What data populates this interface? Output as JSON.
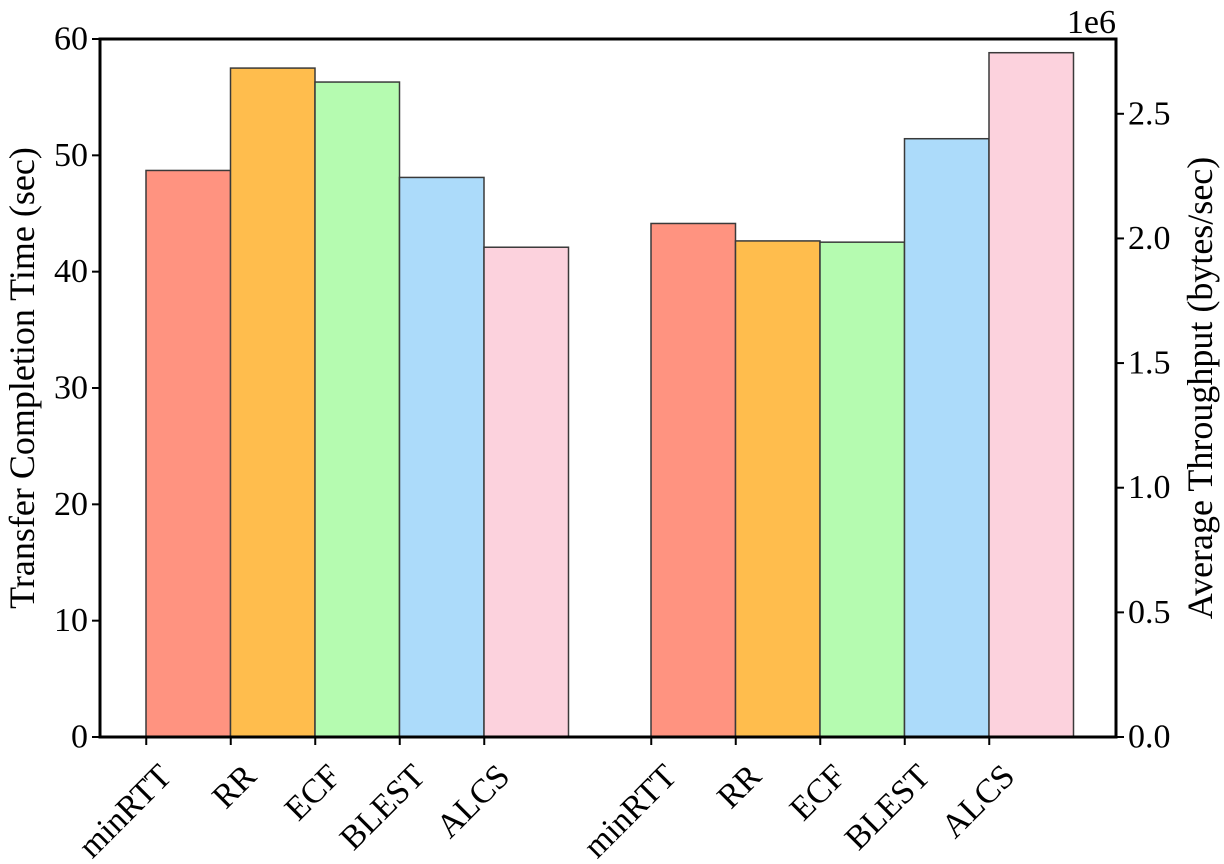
{
  "chart_data": {
    "type": "bar",
    "categories": [
      "minRTT",
      "RR",
      "ECF",
      "BLEST",
      "ALCS"
    ],
    "colors": [
      "#ff9380",
      "#ffbd4d",
      "#b5fbb0",
      "#acdbfa",
      "#fcd2dd"
    ],
    "left_axis": {
      "label": "Transfer Completion Time (sec)",
      "ylim": [
        0,
        60
      ],
      "ticks": [
        0,
        10,
        20,
        30,
        40,
        50,
        60
      ],
      "tick_labels": [
        "0",
        "10",
        "20",
        "30",
        "40",
        "50",
        "60"
      ]
    },
    "right_axis": {
      "label": "Average Throughput (bytes/sec)",
      "offset_text": "1e6",
      "ylim": [
        0,
        2.8
      ],
      "ticks": [
        0,
        0.5,
        1.0,
        1.5,
        2.0,
        2.5
      ],
      "tick_labels": [
        "0.0",
        "0.5",
        "1.0",
        "1.5",
        "2.0",
        "2.5"
      ]
    },
    "series": [
      {
        "axis": "left",
        "values": [
          48.7,
          57.5,
          56.3,
          48.1,
          42.1
        ]
      },
      {
        "axis": "right",
        "values": [
          2.06,
          1.99,
          1.985,
          2.4,
          2.745
        ]
      }
    ],
    "grid": false,
    "legend": "none"
  }
}
